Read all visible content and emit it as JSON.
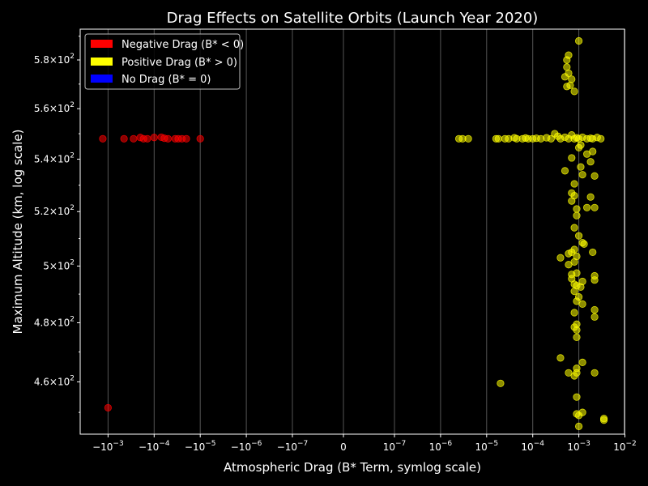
{
  "chart_data": {
    "type": "scatter",
    "title": "Drag Effects on Satellite Orbits (Launch Year 2020)",
    "xlabel": "Atmospheric Drag (B* Term, symlog scale)",
    "ylabel": "Maximum Altitude (km, log scale)",
    "x_scale": "symlog",
    "y_scale": "log",
    "xlim": [
      -0.003,
      0.01
    ],
    "ylim": [
      443,
      593
    ],
    "grid": "vertical",
    "legend_placement": "top-left",
    "x_ticks": [
      {
        "value": -0.001,
        "base": "−",
        "exp": "−3"
      },
      {
        "value": -0.0001,
        "base": "−",
        "exp": "−4"
      },
      {
        "value": -1e-05,
        "base": "−",
        "exp": "−5"
      },
      {
        "value": -1e-06,
        "base": "−",
        "exp": "−6"
      },
      {
        "value": -1e-07,
        "base": "−",
        "exp": "−7"
      },
      {
        "value": 0,
        "label": "0"
      },
      {
        "value": 1e-07,
        "base": "",
        "exp": "−7"
      },
      {
        "value": 1e-06,
        "base": "",
        "exp": "−6"
      },
      {
        "value": 1e-05,
        "base": "",
        "exp": "−5"
      },
      {
        "value": 0.0001,
        "base": "",
        "exp": "−4"
      },
      {
        "value": 0.001,
        "base": "",
        "exp": "−3"
      },
      {
        "value": 0.01,
        "base": "",
        "exp": "−2"
      }
    ],
    "y_ticks": [
      {
        "value": 460,
        "mant": "4.6"
      },
      {
        "value": 480,
        "mant": "4.8"
      },
      {
        "value": 500,
        "mant": "5"
      },
      {
        "value": 520,
        "mant": "5.2"
      },
      {
        "value": 540,
        "mant": "5.4"
      },
      {
        "value": 560,
        "mant": "5.6"
      },
      {
        "value": 580,
        "mant": "5.8"
      }
    ],
    "series": [
      {
        "name": "Negative Drag (B* < 0)",
        "color": "#ff0000",
        "points": [
          [
            -0.0013,
            548
          ],
          [
            -0.00045,
            548
          ],
          [
            -0.00028,
            548
          ],
          [
            -0.0002,
            548.5
          ],
          [
            -0.00017,
            548
          ],
          [
            -0.00014,
            548
          ],
          [
            -0.0001,
            548.5
          ],
          [
            -7e-05,
            548.6
          ],
          [
            -6e-05,
            548.2
          ],
          [
            -5e-05,
            548
          ],
          [
            -3.5e-05,
            548
          ],
          [
            -3e-05,
            548
          ],
          [
            -2.5e-05,
            548
          ],
          [
            -2e-05,
            548
          ],
          [
            -1e-05,
            548
          ],
          [
            -0.001,
            451.5
          ]
        ]
      },
      {
        "name": "Positive Drag (B* > 0)",
        "color": "#ffff00",
        "points": [
          [
            2.5e-06,
            548
          ],
          [
            3e-06,
            548
          ],
          [
            4e-06,
            548
          ],
          [
            1.6e-05,
            548
          ],
          [
            1.8e-05,
            548
          ],
          [
            2.5e-05,
            548
          ],
          [
            3e-05,
            548
          ],
          [
            4e-05,
            548.4
          ],
          [
            4.5e-05,
            548
          ],
          [
            6e-05,
            548
          ],
          [
            7e-05,
            548.3
          ],
          [
            8e-05,
            548
          ],
          [
            0.0001,
            548
          ],
          [
            0.00012,
            548.2
          ],
          [
            0.00015,
            548
          ],
          [
            0.0002,
            548.4
          ],
          [
            0.00025,
            548
          ],
          [
            0.0003,
            550
          ],
          [
            0.00035,
            549
          ],
          [
            0.0004,
            548
          ],
          [
            0.0005,
            548.6
          ],
          [
            0.0006,
            548
          ],
          [
            0.0007,
            549.5
          ],
          [
            0.0008,
            548
          ],
          [
            0.0009,
            548.4
          ],
          [
            0.001,
            548
          ],
          [
            0.0012,
            548.6
          ],
          [
            0.0015,
            548
          ],
          [
            0.0018,
            548.2
          ],
          [
            0.002,
            548
          ],
          [
            0.0025,
            548.5
          ],
          [
            0.003,
            548
          ],
          [
            0.001,
            588
          ],
          [
            0.0006,
            582
          ],
          [
            0.00055,
            580
          ],
          [
            0.00055,
            577
          ],
          [
            0.0006,
            574.5
          ],
          [
            0.0005,
            573
          ],
          [
            0.0007,
            572
          ],
          [
            0.00065,
            569.5
          ],
          [
            0.00055,
            569
          ],
          [
            0.0008,
            567
          ],
          [
            0.001,
            544.5
          ],
          [
            0.0011,
            545.5
          ],
          [
            0.0015,
            542
          ],
          [
            0.002,
            543
          ],
          [
            0.0007,
            540.5
          ],
          [
            0.0018,
            539
          ],
          [
            0.0011,
            537
          ],
          [
            0.0005,
            535.5
          ],
          [
            0.0012,
            534
          ],
          [
            0.0022,
            533.5
          ],
          [
            0.0008,
            530.5
          ],
          [
            0.0007,
            527
          ],
          [
            0.0008,
            526
          ],
          [
            0.0018,
            525.5
          ],
          [
            0.0007,
            524
          ],
          [
            0.0009,
            521
          ],
          [
            0.0015,
            521.5
          ],
          [
            0.0022,
            521.5
          ],
          [
            0.0009,
            518.5
          ],
          [
            0.0008,
            514
          ],
          [
            0.001,
            511
          ],
          [
            0.0012,
            508.5
          ],
          [
            0.0013,
            508
          ],
          [
            0.0008,
            506
          ],
          [
            0.0007,
            505
          ],
          [
            0.0006,
            504.5
          ],
          [
            0.002,
            505
          ],
          [
            0.0009,
            503.5
          ],
          [
            0.0004,
            503
          ],
          [
            0.0008,
            501.5
          ],
          [
            0.0006,
            500.5
          ],
          [
            0.0007,
            497
          ],
          [
            0.0009,
            497.5
          ],
          [
            0.0022,
            496.5
          ],
          [
            0.0007,
            495.5
          ],
          [
            0.0012,
            494.5
          ],
          [
            0.0008,
            493.5
          ],
          [
            0.0009,
            493
          ],
          [
            0.0011,
            492.5
          ],
          [
            0.0022,
            495
          ],
          [
            0.0008,
            491
          ],
          [
            0.001,
            489
          ],
          [
            0.0009,
            487.5
          ],
          [
            0.0012,
            486.5
          ],
          [
            0.0022,
            484.5
          ],
          [
            0.0008,
            483.5
          ],
          [
            0.0022,
            482
          ],
          [
            0.0009,
            479.5
          ],
          [
            0.0008,
            478.5
          ],
          [
            0.0009,
            477.5
          ],
          [
            0.0009,
            475
          ],
          [
            0.0004,
            468
          ],
          [
            0.0012,
            466.5
          ],
          [
            0.0009,
            464.5
          ],
          [
            0.0006,
            463
          ],
          [
            0.0009,
            463
          ],
          [
            0.0008,
            462
          ],
          [
            0.0022,
            463
          ],
          [
            2e-05,
            459.5
          ],
          [
            0.0009,
            455
          ],
          [
            0.0009,
            449.5
          ],
          [
            0.0012,
            450
          ],
          [
            0.001,
            449
          ],
          [
            0.0035,
            448
          ],
          [
            0.0035,
            447.5
          ],
          [
            0.001,
            445.5
          ]
        ]
      },
      {
        "name": "No Drag (B* = 0)",
        "color": "#0000ff",
        "points": []
      }
    ]
  }
}
